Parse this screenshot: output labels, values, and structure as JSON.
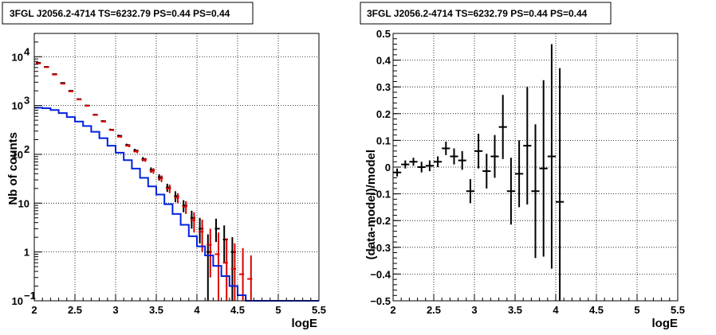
{
  "chart_data": [
    {
      "type": "line",
      "title": "3FGL J2056.2-4714 TS=6232.79 PS=0.44 PS=0.44",
      "xlabel": "logE",
      "ylabel": "Nb of counts",
      "xlim": [
        2,
        5.5
      ],
      "ylim": [
        0.1,
        30000
      ],
      "yscale": "log",
      "grid": true,
      "xticks": [
        "2",
        "2.5",
        "3",
        "3.5",
        "4",
        "4.5",
        "5",
        "5.5"
      ],
      "yticks": [
        {
          "value": 0.1,
          "label": "10",
          "exp": "−1"
        },
        {
          "value": 1,
          "label": "1",
          "exp": ""
        },
        {
          "value": 10,
          "label": "10",
          "exp": ""
        },
        {
          "value": 100,
          "label": "10",
          "exp": "2"
        },
        {
          "value": 1000,
          "label": "10",
          "exp": "3"
        },
        {
          "value": 10000,
          "label": "10",
          "exp": "4"
        }
      ],
      "bin_width": 0.1,
      "series": [
        {
          "color": "#000000",
          "x": [
            2.05,
            2.15,
            2.25,
            2.35,
            2.45,
            2.55,
            2.65,
            2.75,
            2.85,
            2.95,
            3.05,
            3.15,
            3.25,
            3.35,
            3.45,
            3.55,
            3.65,
            3.75,
            3.85,
            3.95,
            4.05,
            4.15,
            4.25,
            4.35,
            4.45
          ],
          "y": [
            7500,
            6200,
            4400,
            2900,
            2000,
            1350,
            1000,
            650,
            480,
            320,
            240,
            155,
            120,
            80,
            48,
            34,
            21,
            14,
            9,
            5,
            3,
            1.0,
            3,
            1.8,
            1.0
          ],
          "ylow": [
            7400,
            6100,
            4300,
            2850,
            1950,
            1310,
            970,
            630,
            460,
            305,
            228,
            145,
            110,
            72,
            42,
            29,
            17,
            10.5,
            6.5,
            3,
            1.5,
            0.1,
            1.6,
            0.6,
            0.1
          ],
          "yhigh": [
            7600,
            6300,
            4500,
            2950,
            2050,
            1390,
            1030,
            670,
            500,
            335,
            252,
            165,
            130,
            88,
            54,
            39,
            25,
            17.5,
            11.5,
            7,
            5,
            2.3,
            4.8,
            3.5,
            2.0
          ]
        },
        {
          "color": "#dd0000",
          "x": [
            2.05,
            2.15,
            2.25,
            2.35,
            2.45,
            2.55,
            2.65,
            2.75,
            2.85,
            2.95,
            3.05,
            3.15,
            3.25,
            3.35,
            3.45,
            3.55,
            3.65,
            3.75,
            3.85,
            3.95,
            4.05,
            4.15,
            4.25,
            4.35,
            4.45,
            4.55,
            4.65
          ],
          "y": [
            7300,
            6100,
            4300,
            2800,
            1950,
            1330,
            990,
            640,
            470,
            315,
            230,
            150,
            115,
            77,
            46,
            32,
            20,
            13,
            8.5,
            4.5,
            2.6,
            1.4,
            0.9,
            0.6,
            0.45,
            0.35,
            0.28
          ],
          "ylow": [
            7200,
            6000,
            4200,
            2750,
            1900,
            1290,
            960,
            620,
            450,
            300,
            218,
            140,
            106,
            70,
            40,
            27,
            16,
            10,
            6,
            2.5,
            1.0,
            0.3,
            0.1,
            0.1,
            0.1,
            0.1,
            0.1
          ],
          "yhigh": [
            7400,
            6200,
            4400,
            2850,
            2000,
            1370,
            1020,
            660,
            490,
            330,
            242,
            160,
            124,
            84,
            52,
            37,
            24,
            16,
            11,
            6.5,
            4.6,
            3.0,
            2.5,
            1.9,
            1.5,
            1.2,
            0.85
          ]
        },
        {
          "color": "#0022dd",
          "style": "step",
          "edges": [
            2.0,
            2.1,
            2.2,
            2.3,
            2.4,
            2.5,
            2.6,
            2.7,
            2.8,
            2.9,
            3.0,
            3.1,
            3.2,
            3.3,
            3.4,
            3.5,
            3.6,
            3.7,
            3.8,
            3.9,
            4.0,
            4.1,
            4.2,
            4.3,
            4.4,
            4.5,
            4.6,
            4.7,
            5.5
          ],
          "y": [
            900,
            880,
            810,
            700,
            580,
            470,
            380,
            290,
            215,
            150,
            108,
            76,
            51,
            33,
            22,
            15,
            9.5,
            6,
            3.6,
            2.1,
            1.3,
            0.85,
            0.52,
            0.32,
            0.2,
            0.13,
            0.1,
            0.1
          ]
        }
      ]
    },
    {
      "type": "scatter",
      "title": "3FGL J2056.2-4714 TS=6232.79 PS=0.44 PS=0.44",
      "xlabel": "logE",
      "ylabel": "(data-model)/model",
      "xlim": [
        2,
        5.5
      ],
      "ylim": [
        -0.5,
        0.5
      ],
      "grid": true,
      "xticks": [
        "2",
        "2.5",
        "3",
        "3.5",
        "4",
        "4.5",
        "5",
        "5.5"
      ],
      "yticks": [
        "−0.5",
        "−0.4",
        "−0.3",
        "−0.2",
        "−0.1",
        "0",
        "0.1",
        "0.2",
        "0.3",
        "0.4",
        "0.5"
      ],
      "bin_width": 0.1,
      "series": [
        {
          "color": "#000000",
          "x": [
            2.05,
            2.15,
            2.25,
            2.35,
            2.45,
            2.55,
            2.65,
            2.75,
            2.85,
            2.95,
            3.05,
            3.15,
            3.25,
            3.35,
            3.45,
            3.55,
            3.65,
            3.75,
            3.85,
            3.95,
            4.05
          ],
          "y": [
            -0.02,
            0.01,
            0.02,
            0.0,
            0.005,
            0.02,
            0.07,
            0.04,
            0.025,
            -0.09,
            0.06,
            -0.015,
            0.04,
            0.15,
            -0.09,
            -0.025,
            0.08,
            -0.09,
            -0.005,
            0.04,
            -0.13
          ],
          "yerr": [
            0.015,
            0.015,
            0.015,
            0.02,
            0.02,
            0.02,
            0.025,
            0.03,
            0.035,
            0.045,
            0.065,
            0.065,
            0.08,
            0.12,
            0.125,
            0.125,
            0.22,
            0.25,
            0.33,
            0.42,
            0.5
          ]
        }
      ]
    }
  ]
}
